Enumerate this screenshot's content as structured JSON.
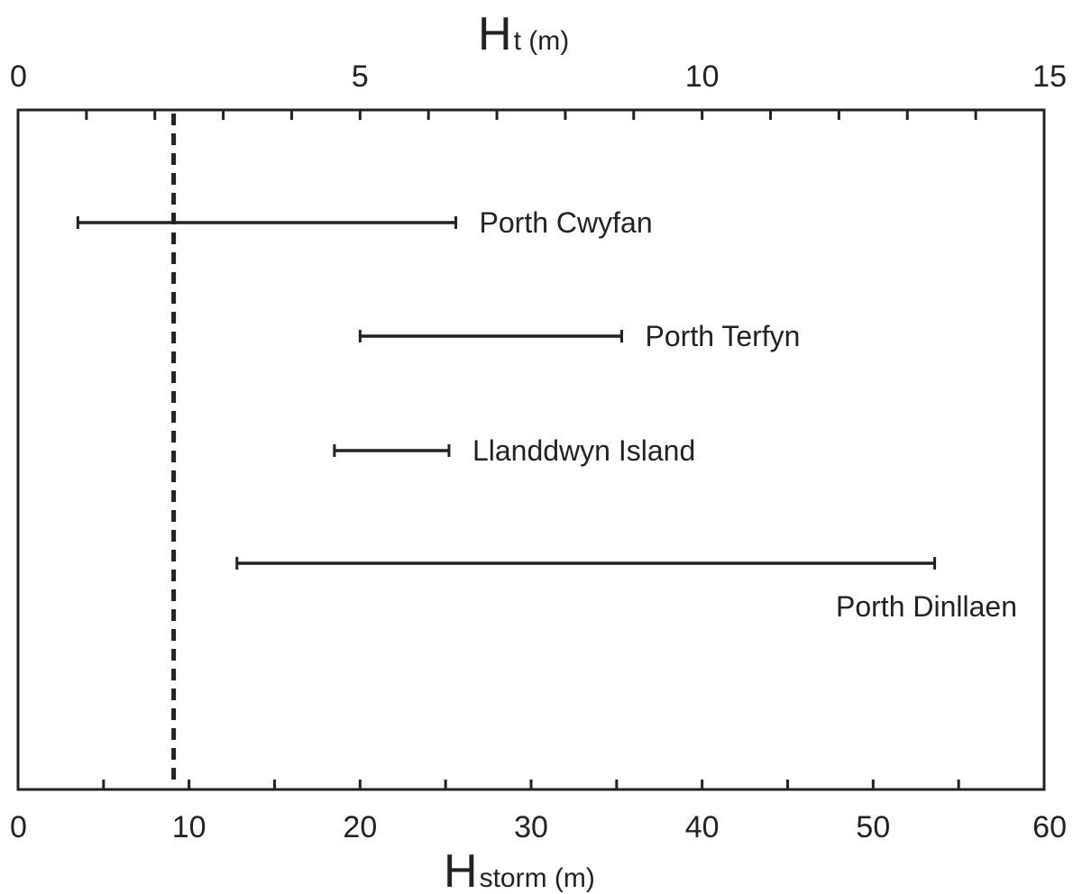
{
  "chart_data": {
    "type": "range",
    "top_axis": {
      "title_main": "H",
      "title_sub": "t (m)",
      "range": [
        0,
        15
      ],
      "major_ticks": [
        0,
        5,
        10,
        15
      ],
      "tick_labels": [
        "0",
        "5",
        "10",
        "15"
      ],
      "minor_step": 1
    },
    "bottom_axis": {
      "title_main": "H",
      "title_sub": "storm (m)",
      "range": [
        0,
        60
      ],
      "major_ticks": [
        0,
        10,
        20,
        30,
        40,
        50,
        60
      ],
      "tick_labels": [
        "0",
        "10",
        "20",
        "30",
        "40",
        "50",
        "60"
      ],
      "minor_step": 5
    },
    "reference_line": {
      "axis": "bottom",
      "value": 9.1,
      "style": "dashed"
    },
    "series": [
      {
        "name": "Porth Cwyfan",
        "min": 3.5,
        "max": 25.6,
        "label_position": "right"
      },
      {
        "name": "Porth Terfyn",
        "min": 20.0,
        "max": 35.3,
        "label_position": "right"
      },
      {
        "name": "Llanddwyn Island",
        "min": 18.5,
        "max": 25.2,
        "label_position": "right"
      },
      {
        "name": "Porth Dinllaen",
        "min": 12.8,
        "max": 53.6,
        "label_position": "below-right"
      }
    ],
    "grid": false,
    "colors": {
      "line": "#222222",
      "background": "#ffffff"
    }
  }
}
